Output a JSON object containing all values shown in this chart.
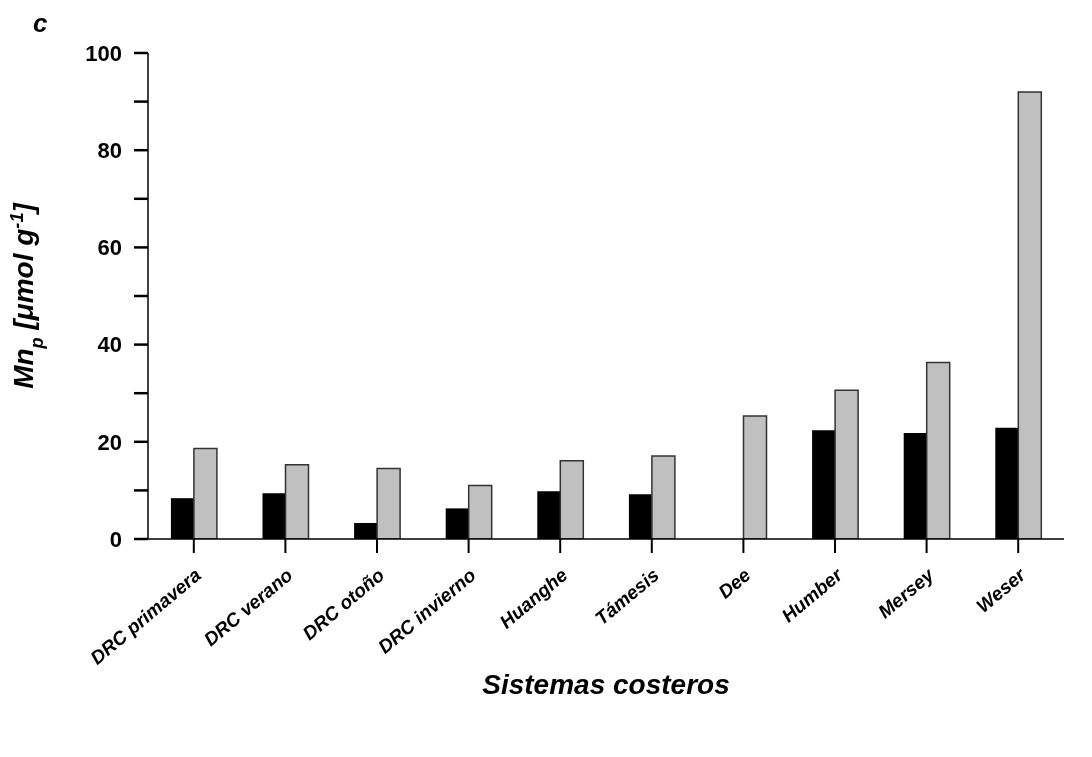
{
  "chart_data": {
    "type": "bar",
    "xlabel": "Sistemas costeros",
    "ylabel": "Mn$_{p}$ [μmol g$^{-1}$]",
    "annotations": [
      "c"
    ],
    "categories": [
      "DRC primavera",
      "DRC verano",
      "DRC otoño",
      "DRC invierno",
      "Huanghe",
      "Támesis",
      "Dee",
      "Humber",
      "Mersey",
      "Weser"
    ],
    "series": [
      {
        "color": "#000000",
        "values": [
          8.4,
          9.4,
          3.3,
          6.3,
          9.8,
          9.2,
          null,
          22.4,
          21.8,
          22.9
        ]
      },
      {
        "color": "#c0c0c0",
        "values": [
          18.6,
          15.3,
          14.5,
          11.0,
          16.1,
          17.1,
          25.3,
          30.6,
          36.3,
          92.0
        ]
      }
    ],
    "ylim": [
      0,
      100
    ],
    "yticks": [
      0,
      {
        "value": 10,
        "label": null
      },
      20,
      {
        "value": 30,
        "label": null
      },
      40,
      {
        "value": 50,
        "label": null
      },
      60,
      {
        "value": 70,
        "label": null
      },
      80,
      {
        "value": 90,
        "label": null
      },
      100
    ],
    "grid": false,
    "legend": false
  }
}
